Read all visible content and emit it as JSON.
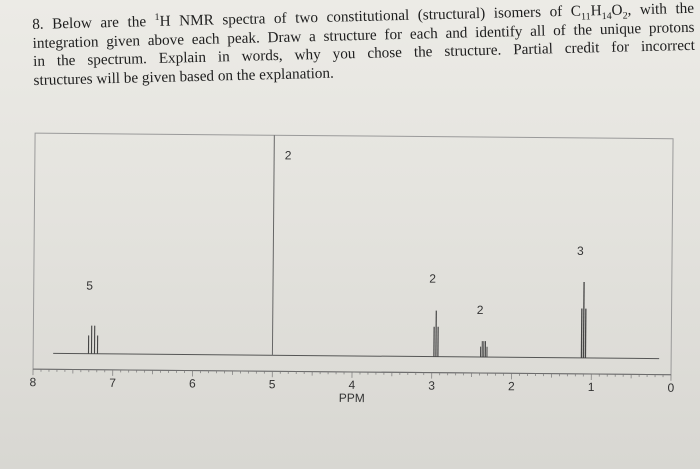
{
  "question": {
    "number": "8.",
    "line1_a": "Below are the ",
    "line1_sup": "1",
    "line1_b": "H NMR spectra of two constitutional (structural) isomers of C",
    "sub1": "11",
    "line1_h": "H",
    "sub2": "14",
    "line1_o": "O",
    "sub3": "2",
    "line1_c": ", with the",
    "line2": "integration given above each peak. Draw a structure for each and identify all of the unique protons",
    "line3": "in the spectrum. Explain in words, why you chose the structure. Partial credit for incorrect",
    "line4": "structures will be given based on the explanation."
  },
  "chart_data": {
    "type": "nmr-spectrum",
    "xlabel": "PPM",
    "x_axis": {
      "reversed": true,
      "xlim": [
        8,
        0
      ],
      "ticks": [
        "8",
        "7",
        "6",
        "5",
        "4",
        "3",
        "2",
        "1",
        "0"
      ]
    },
    "peaks": [
      {
        "ppm": 7.25,
        "integration": "5"
      },
      {
        "ppm": 2.95,
        "integration": "2"
      },
      {
        "ppm": 2.35,
        "integration": "2"
      },
      {
        "ppm": 1.1,
        "integration": "3"
      }
    ],
    "annotations": [
      {
        "ppm": 5.0,
        "label": "2"
      }
    ]
  }
}
